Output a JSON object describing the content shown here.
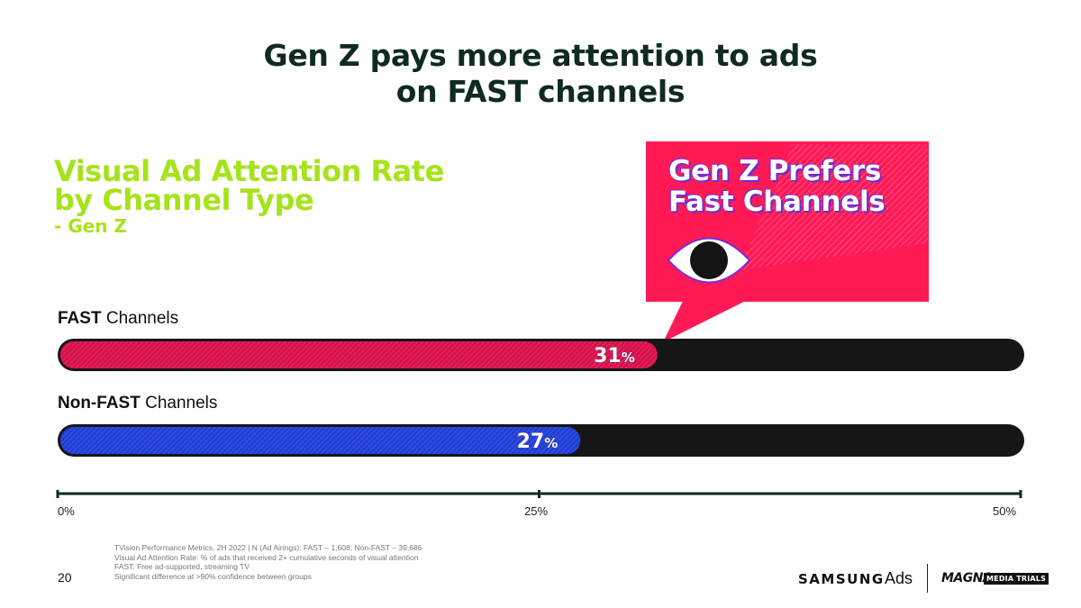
{
  "headline": [
    "Gen Z pays more attention to ads",
    "on FAST channels"
  ],
  "chart_data": {
    "type": "bar",
    "orientation": "horizontal",
    "title": [
      "Visual Ad Attention Rate",
      "by Channel Type"
    ],
    "subtitle": "- Gen Z",
    "categories": [
      {
        "bold": "FAST",
        "rest": " Channels"
      },
      {
        "bold": "Non-FAST",
        "rest": " Channels"
      }
    ],
    "values": [
      31,
      27
    ],
    "value_labels": [
      {
        "num": "31",
        "unit": "%"
      },
      {
        "num": "27",
        "unit": "%"
      }
    ],
    "colors": [
      "#d8104a",
      "#1f3ed6"
    ],
    "track_color": "#161616",
    "xlim": [
      0,
      50
    ],
    "xticks": [
      "0%",
      "25%",
      "50%"
    ],
    "grid": false,
    "legend": "none"
  },
  "callout": {
    "text": [
      "Gen Z Prefers",
      "Fast Channels"
    ],
    "color": "#ff1a55",
    "icon": "eye-icon"
  },
  "footnotes": [
    "TVision Performance Metrics, 2H 2022  | N (Ad Airings): FAST – 1,608; Non-FAST – 39,686",
    "Visual Ad Attention Rate:  % of ads that received 2+ cumulative seconds of visual attention",
    "FAST: Free ad-supported, streaming TV",
    "Significant difference at >90% confidence  between groups"
  ],
  "page_number": "20",
  "brands": {
    "samsung": "SAMSUNG",
    "ads": "Ads",
    "magna": "MAGNA",
    "media_trials": "MEDIA TRIALS"
  }
}
